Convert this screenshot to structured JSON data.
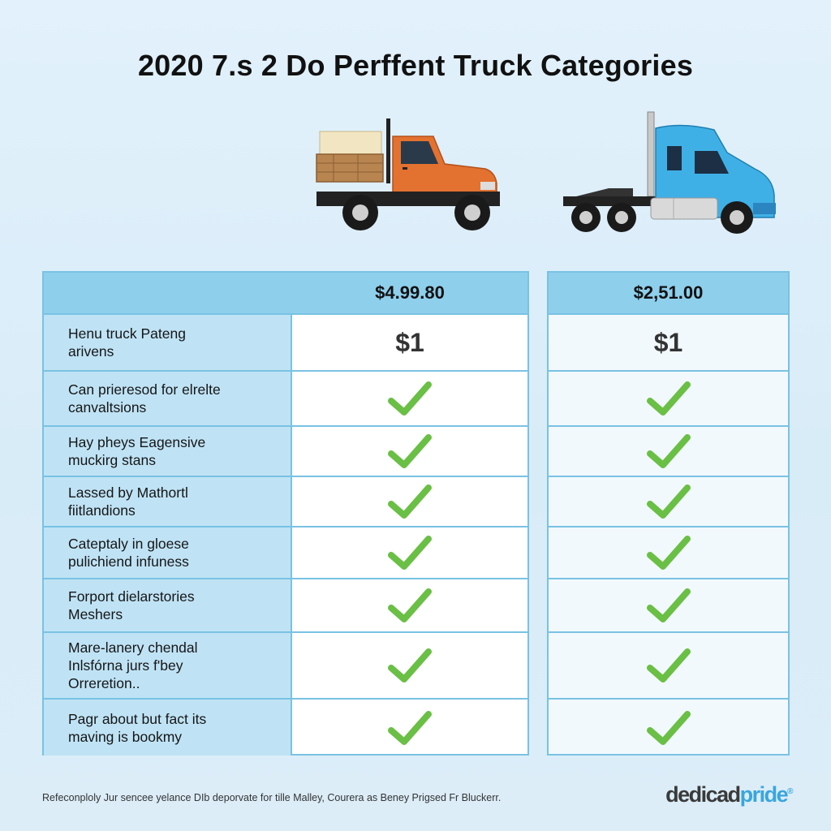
{
  "title": "2020 7.s 2 Do Perffent Truck Categories",
  "icons": {
    "left_truck": "orange-flatbed-truck-icon",
    "right_truck": "blue-semi-truck-icon",
    "check": "check-mark-icon"
  },
  "colors": {
    "header_fill": "#8ecfec",
    "label_fill": "#bfe3f5",
    "border": "#79c2e3",
    "check": "#6abf45",
    "left_truck": "#e3712f",
    "right_truck": "#3fb0e6",
    "brand_accent": "#3aa6dd"
  },
  "columns": [
    {
      "price": "$4.99.80"
    },
    {
      "price": "$2,51.00"
    }
  ],
  "rows": [
    {
      "label": [
        "Henu truck Pateng",
        "arivens"
      ],
      "values": [
        "$1",
        "$1"
      ]
    },
    {
      "label": [
        "Can prieresod for elrelte",
        "canvaltsions"
      ],
      "values": [
        "check",
        "check"
      ]
    },
    {
      "label": [
        "Hay pheys Eagensive",
        "muckirg stans"
      ],
      "values": [
        "check",
        "check"
      ]
    },
    {
      "label": [
        "Lassed by Mathortl",
        "fiitlandions"
      ],
      "values": [
        "check",
        "check"
      ]
    },
    {
      "label": [
        "Cateptaly in gloese",
        "pulichiend infuness"
      ],
      "values": [
        "check",
        "check"
      ]
    },
    {
      "label": [
        "Forport dielarstories",
        "Meshers"
      ],
      "values": [
        "check",
        "check"
      ]
    },
    {
      "label": [
        "Mare-lanery chendal",
        "Inlsfórna jurs f'bey",
        "Orreretion.."
      ],
      "values": [
        "check",
        "check"
      ]
    },
    {
      "label": [
        "Pagr about but fact its",
        "maving is bookmy"
      ],
      "values": [
        "check",
        "check"
      ]
    }
  ],
  "footer": "Refeconploly Jur sencee yelance DIb deporvate for tille Malley, Courera as Beney Prigsed Fr Bluckerr.",
  "brand": {
    "part1": "dedicad",
    "part2": "pride",
    "mark": "®"
  }
}
